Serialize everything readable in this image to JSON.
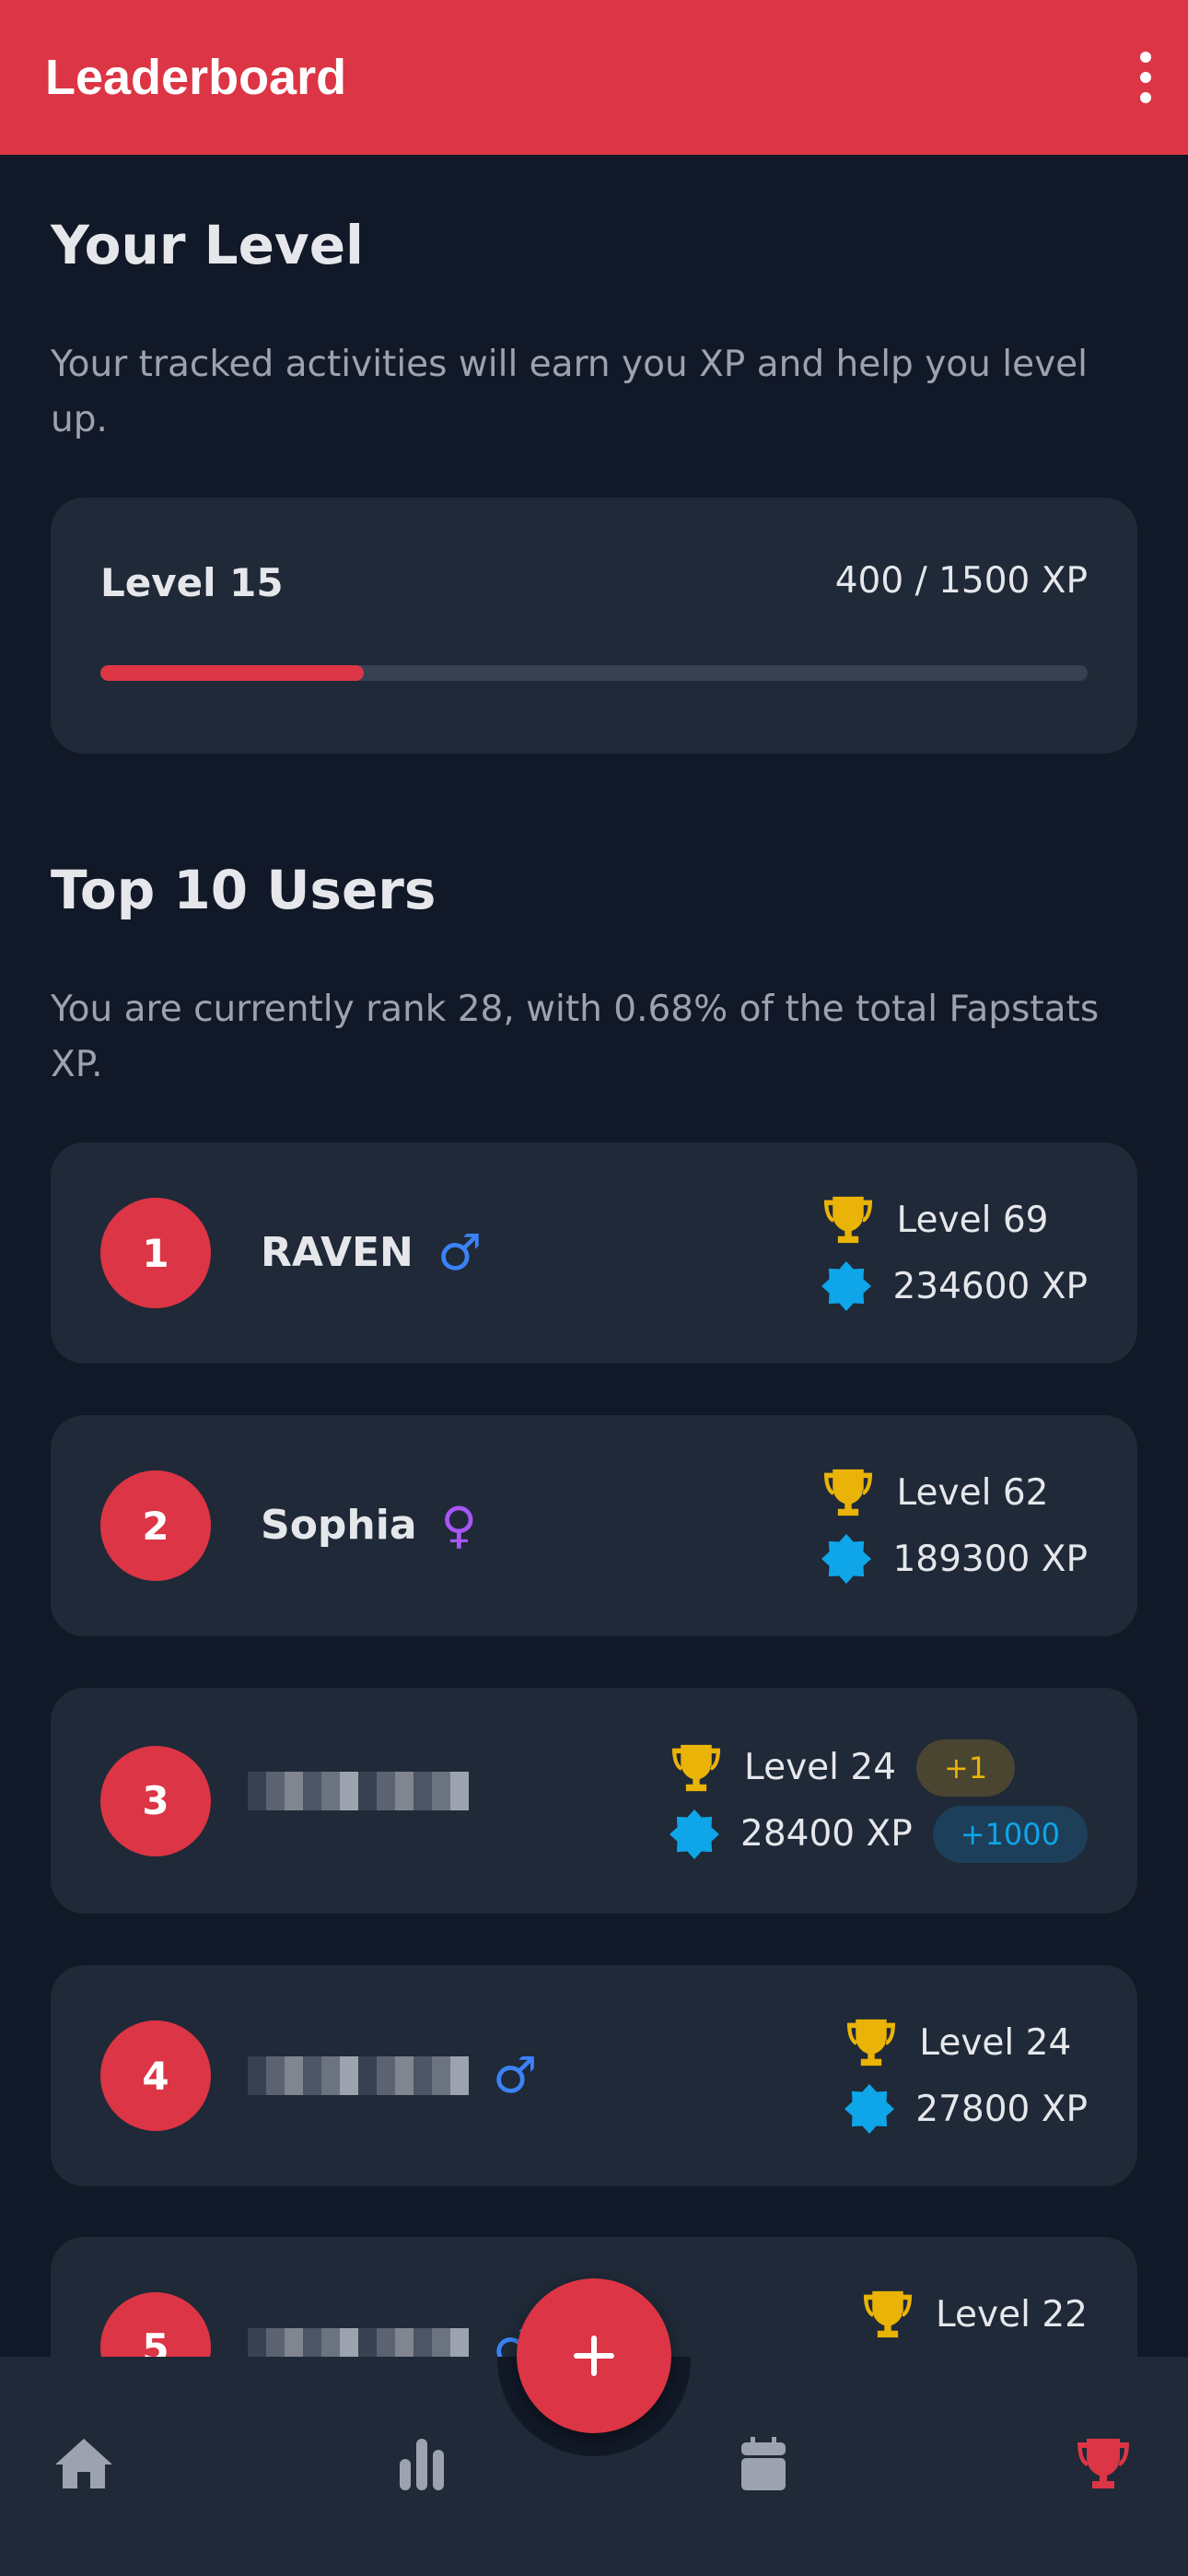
{
  "header": {
    "title": "Leaderboard",
    "menu_icon": "more-vertical-icon"
  },
  "your_level": {
    "heading": "Your Level",
    "description": "Your tracked activities will earn you XP and help you level up.",
    "level_label": "Level 15",
    "xp_label": "400 / 1500 XP",
    "progress_percent": 26.7
  },
  "top_users": {
    "heading": "Top 10 Users",
    "description": "You are currently rank 28, with 0.68% of the total Fapstats XP.",
    "users": [
      {
        "rank": "1",
        "name": "RAVEN",
        "gender": "male",
        "level": "Level 69",
        "xp": "234600 XP"
      },
      {
        "rank": "2",
        "name": "Sophia",
        "gender": "female",
        "level": "Level 62",
        "xp": "189300 XP"
      },
      {
        "rank": "3",
        "name": "",
        "gender": "",
        "level": "Level 24",
        "xp": "28400 XP",
        "level_delta": "+1",
        "xp_delta": "+1000"
      },
      {
        "rank": "4",
        "name": "",
        "gender": "male",
        "level": "Level 24",
        "xp": "27800 XP"
      },
      {
        "rank": "5",
        "name": "",
        "gender": "male",
        "level": "Level 22",
        "xp": ""
      }
    ]
  },
  "colors": {
    "accent": "#dc3545",
    "male": "#3b82f6",
    "female": "#a855f7",
    "trophy": "#eab308",
    "xp": "#0ea5e9"
  },
  "nav": {
    "items": [
      {
        "icon": "home-icon"
      },
      {
        "icon": "stats-icon"
      },
      {
        "icon": "calendar-icon"
      },
      {
        "icon": "trophy-icon",
        "active": true
      }
    ],
    "fab_icon": "plus-icon"
  }
}
